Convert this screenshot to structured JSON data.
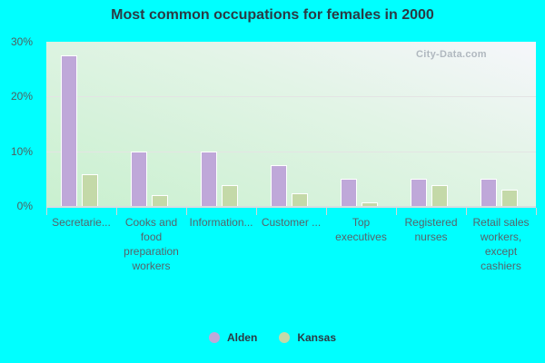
{
  "chart_data": {
    "type": "bar",
    "title": "Most common occupations for females in 2000",
    "xlabel": "",
    "ylabel": "",
    "ylim": [
      0,
      30
    ],
    "yticks": [
      "0%",
      "10%",
      "20%",
      "30%"
    ],
    "grid": true,
    "legend_position": "bottom",
    "categories": [
      "Secretarie...",
      "Cooks and food preparation workers",
      "Information...",
      "Customer ...",
      "Top executives",
      "Registered nurses",
      "Retail sales workers, except cashiers"
    ],
    "series": [
      {
        "name": "Alden",
        "color": "#bfa8d9",
        "values": [
          27.5,
          10.0,
          10.0,
          7.5,
          5.0,
          5.0,
          5.0
        ]
      },
      {
        "name": "Kansas",
        "color": "#c4d9a8",
        "values": [
          5.8,
          2.0,
          3.8,
          2.3,
          0.7,
          3.8,
          3.0
        ]
      }
    ]
  },
  "watermark": "City-Data.com",
  "colors": {
    "background": "#00ffff",
    "alden": "#bfa8d9",
    "kansas": "#c4d9a8"
  }
}
